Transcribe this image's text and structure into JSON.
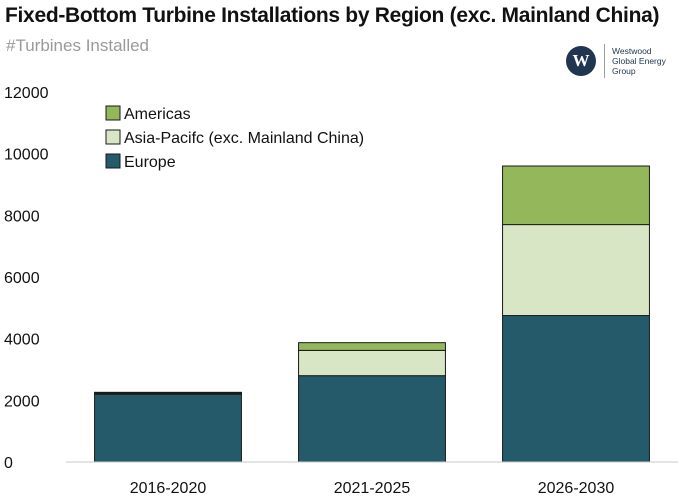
{
  "header": {
    "title": "Fixed-Bottom Turbine Installations by Region (exc. Mainland China)",
    "subtitle": "#Turbines Installed"
  },
  "logo": {
    "mark": "W",
    "lines": [
      "Westwood",
      "Global Energy",
      "Group"
    ]
  },
  "colors": {
    "Europe": "#245a69",
    "Asia-Pacifc (exc. Mainland China)": "#d9e6c5",
    "Americas": "#93b75a",
    "outline": "#1a1a1a"
  },
  "chart_data": {
    "type": "bar",
    "stacked": true,
    "title": "Fixed-Bottom Turbine Installations by Region (exc. Mainland China)",
    "subtitle": "#Turbines Installed",
    "categories": [
      "2016-2020",
      "2021-2025",
      "2026-2030"
    ],
    "series": [
      {
        "name": "Europe",
        "values": [
          2200,
          2800,
          4750
        ]
      },
      {
        "name": "Asia-Pacifc (exc. Mainland China)",
        "values": [
          30,
          820,
          2950
        ]
      },
      {
        "name": "Americas",
        "values": [
          30,
          250,
          1900
        ]
      }
    ],
    "ylim": [
      0,
      12000
    ],
    "yticks": [
      0,
      2000,
      4000,
      6000,
      8000,
      10000,
      12000
    ],
    "legend": {
      "placement": "top-left",
      "order": [
        "Americas",
        "Asia-Pacifc (exc. Mainland China)",
        "Europe"
      ]
    },
    "grid": false
  }
}
